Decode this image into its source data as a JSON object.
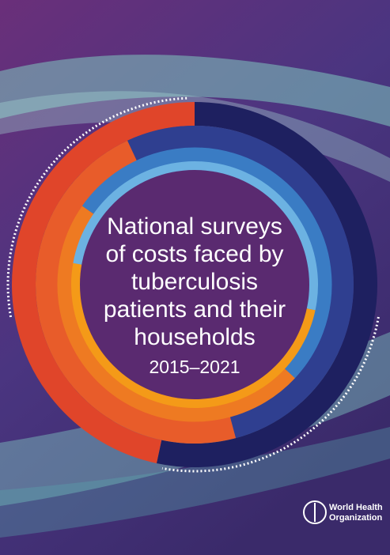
{
  "cover": {
    "title_lines": [
      "National surveys",
      "of costs faced by",
      "tuberculosis",
      "patients and their",
      "households"
    ],
    "years": "2015–2021"
  },
  "publisher": {
    "lines": [
      "World Health",
      "Organization"
    ]
  }
}
